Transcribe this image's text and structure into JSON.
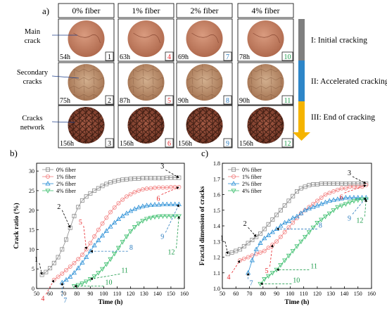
{
  "panel_a": {
    "label": "a)",
    "columns": [
      "0% fiber",
      "1% fiber",
      "2% fiber",
      "4% fiber"
    ],
    "row_labels": [
      [
        "Main",
        "crack"
      ],
      [
        "Secondary",
        "cracks"
      ],
      [
        "Cracks",
        "network"
      ]
    ],
    "cells": [
      [
        {
          "time": "54h",
          "num": "1",
          "color": "#000000"
        },
        {
          "time": "63h",
          "num": "4",
          "color": "#e8282d"
        },
        {
          "time": "69h",
          "num": "7",
          "color": "#2a7bbf"
        },
        {
          "time": "78h",
          "num": "10",
          "color": "#1a9a48"
        }
      ],
      [
        {
          "time": "75h",
          "num": "2",
          "color": "#000000"
        },
        {
          "time": "87h",
          "num": "5",
          "color": "#e8282d"
        },
        {
          "time": "90h",
          "num": "8",
          "color": "#2a7bbf"
        },
        {
          "time": "90h",
          "num": "11",
          "color": "#1a9a48"
        }
      ],
      [
        {
          "time": "156h",
          "num": "3",
          "color": "#000000"
        },
        {
          "time": "156h",
          "num": "6",
          "color": "#e8282d"
        },
        {
          "time": "156h",
          "num": "9",
          "color": "#2a7bbf"
        },
        {
          "time": "156h",
          "num": "12",
          "color": "#1a9a48"
        }
      ]
    ],
    "stages": [
      {
        "label": "I: Initial cracking",
        "color": "#7f7f7f"
      },
      {
        "label": "II: Accelerated cracking",
        "color": "#2e86c8"
      },
      {
        "label": "III: End of cracking",
        "color": "#f5b400"
      }
    ]
  },
  "chart_data": [
    {
      "type": "line",
      "panel_label": "b)",
      "xlabel": "Time (h)",
      "ylabel": "Crack ratio (%)",
      "xlim": [
        50,
        160
      ],
      "ylim": [
        0,
        32
      ],
      "xticks": [
        50,
        60,
        70,
        80,
        90,
        100,
        110,
        120,
        130,
        140,
        150,
        160
      ],
      "yticks": [
        0,
        5,
        10,
        15,
        20,
        25,
        30
      ],
      "legend_position": "top-left",
      "series": [
        {
          "name": "0% fiber",
          "color": "#8c8c8c",
          "marker": "square",
          "x": [
            54,
            57,
            60,
            63,
            66,
            69,
            72,
            75,
            78,
            81,
            84,
            87,
            90,
            93,
            96,
            99,
            102,
            105,
            108,
            111,
            114,
            117,
            120,
            123,
            126,
            129,
            132,
            135,
            138,
            141,
            144,
            147,
            150,
            153,
            156
          ],
          "y": [
            3.5,
            4.2,
            5.2,
            6.5,
            8.0,
            10.0,
            12.5,
            15.5,
            18.5,
            20.8,
            22.5,
            23.5,
            24.3,
            25.0,
            25.6,
            26.2,
            26.7,
            27.1,
            27.4,
            27.6,
            27.8,
            27.9,
            28.0,
            28.1,
            28.1,
            28.2,
            28.2,
            28.2,
            28.2,
            28.2,
            28.2,
            28.3,
            28.3,
            28.3,
            28.3
          ]
        },
        {
          "name": "1% fiber",
          "color": "#f27f7f",
          "marker": "circle",
          "x": [
            63,
            66,
            69,
            72,
            75,
            78,
            81,
            84,
            87,
            90,
            93,
            96,
            99,
            102,
            105,
            108,
            111,
            114,
            117,
            120,
            123,
            126,
            129,
            132,
            135,
            138,
            141,
            144,
            147,
            150,
            153,
            156
          ],
          "y": [
            2.2,
            3.0,
            3.8,
            4.7,
            5.6,
            6.5,
            7.5,
            8.6,
            10.0,
            11.6,
            13.3,
            15.0,
            16.6,
            18.1,
            19.5,
            20.7,
            21.8,
            22.7,
            23.5,
            24.1,
            24.6,
            25.0,
            25.3,
            25.5,
            25.6,
            25.7,
            25.8,
            25.8,
            25.8,
            25.9,
            25.9,
            25.9
          ]
        },
        {
          "name": "2% fiber",
          "color": "#2a8fd6",
          "marker": "triangle-up",
          "x": [
            69,
            72,
            75,
            78,
            81,
            84,
            87,
            90,
            93,
            96,
            99,
            102,
            105,
            108,
            111,
            114,
            117,
            120,
            123,
            126,
            129,
            132,
            135,
            138,
            141,
            144,
            147,
            150,
            153,
            156
          ],
          "y": [
            1.5,
            2.2,
            3.0,
            4.0,
            5.2,
            6.6,
            8.0,
            9.5,
            11.0,
            12.3,
            13.5,
            14.7,
            15.8,
            16.8,
            17.7,
            18.5,
            19.2,
            19.8,
            20.3,
            20.7,
            21.0,
            21.2,
            21.3,
            21.4,
            21.4,
            21.5,
            21.5,
            21.5,
            21.5,
            21.5
          ]
        },
        {
          "name": "4% fiber",
          "color": "#3dbf6e",
          "marker": "triangle-down",
          "x": [
            78,
            81,
            84,
            87,
            90,
            93,
            96,
            99,
            102,
            105,
            108,
            111,
            114,
            117,
            120,
            123,
            126,
            129,
            132,
            135,
            138,
            141,
            144,
            147,
            150,
            153,
            156
          ],
          "y": [
            0.6,
            0.9,
            1.3,
            1.8,
            2.4,
            3.1,
            4.0,
            5.0,
            6.2,
            7.5,
            8.9,
            10.4,
            11.9,
            13.3,
            14.6,
            15.7,
            16.6,
            17.3,
            17.8,
            18.1,
            18.3,
            18.4,
            18.5,
            18.5,
            18.5,
            18.5,
            18.5
          ]
        }
      ],
      "annotations": [
        {
          "text": "1",
          "color": "#000000",
          "point": [
            54,
            3.5
          ],
          "label": [
            52,
            6.5
          ]
        },
        {
          "text": "2",
          "color": "#000000",
          "point": [
            75,
            15.5
          ],
          "label": [
            69,
            20.0
          ]
        },
        {
          "text": "3",
          "color": "#000000",
          "point": [
            156,
            28.3
          ],
          "label": [
            146,
            30.3
          ]
        },
        {
          "text": "4",
          "color": "#e8282d",
          "point": [
            63,
            2.2
          ],
          "label": [
            57,
            -1.5
          ]
        },
        {
          "text": "5",
          "color": "#e8282d",
          "point": [
            87,
            10.0
          ],
          "label": [
            85,
            16.0
          ]
        },
        {
          "text": "6",
          "color": "#e8282d",
          "point": [
            156,
            25.9
          ],
          "label": [
            143,
            24.0
          ]
        },
        {
          "text": "7",
          "color": "#2a7bbf",
          "point": [
            69,
            1.5
          ],
          "label": [
            69,
            -2.0
          ]
        },
        {
          "text": "8",
          "color": "#2a7bbf",
          "point": [
            90,
            9.5
          ],
          "label": [
            118,
            9.5
          ]
        },
        {
          "text": "9",
          "color": "#2a7bbf",
          "point": [
            156,
            21.5
          ],
          "label": [
            146,
            14.3
          ]
        },
        {
          "text": "10",
          "color": "#1a9a48",
          "point": [
            78,
            0.6
          ],
          "label": [
            100,
            0.6
          ]
        },
        {
          "text": "11",
          "color": "#1a9a48",
          "point": [
            90,
            2.4
          ],
          "label": [
            112,
            3.7
          ]
        },
        {
          "text": "12",
          "color": "#1a9a48",
          "point": [
            156,
            18.5
          ],
          "label": [
            154,
            10.3
          ]
        }
      ]
    },
    {
      "type": "line",
      "panel_label": "c)",
      "xlabel": "Time (h)",
      "ylabel": "Fractal dimension of cracks",
      "xlim": [
        50,
        160
      ],
      "ylim": [
        1.0,
        1.8
      ],
      "xticks": [
        50,
        60,
        70,
        80,
        90,
        100,
        110,
        120,
        130,
        140,
        150,
        160
      ],
      "yticks": [
        1.0,
        1.1,
        1.2,
        1.3,
        1.4,
        1.5,
        1.6,
        1.7,
        1.8
      ],
      "legend_position": "top-left",
      "series": [
        {
          "name": "0% fiber",
          "color": "#8c8c8c",
          "marker": "square",
          "x": [
            54,
            57,
            60,
            63,
            66,
            69,
            72,
            75,
            78,
            81,
            84,
            87,
            90,
            93,
            96,
            99,
            102,
            105,
            108,
            111,
            114,
            117,
            120,
            123,
            126,
            129,
            132,
            135,
            138,
            141,
            144,
            147,
            150,
            153,
            156
          ],
          "y": [
            1.22,
            1.23,
            1.24,
            1.25,
            1.27,
            1.29,
            1.31,
            1.33,
            1.35,
            1.38,
            1.41,
            1.44,
            1.47,
            1.5,
            1.53,
            1.56,
            1.59,
            1.62,
            1.64,
            1.65,
            1.66,
            1.665,
            1.665,
            1.67,
            1.67,
            1.67,
            1.67,
            1.67,
            1.67,
            1.67,
            1.67,
            1.67,
            1.67,
            1.67,
            1.67
          ]
        },
        {
          "name": "1% fiber",
          "color": "#f27f7f",
          "marker": "circle",
          "x": [
            63,
            66,
            69,
            72,
            75,
            78,
            81,
            84,
            87,
            90,
            93,
            96,
            99,
            102,
            105,
            108,
            111,
            114,
            117,
            120,
            123,
            126,
            129,
            132,
            135,
            138,
            141,
            144,
            147,
            150,
            153,
            156
          ],
          "y": [
            1.18,
            1.19,
            1.2,
            1.21,
            1.22,
            1.23,
            1.24,
            1.26,
            1.28,
            1.3,
            1.33,
            1.36,
            1.39,
            1.42,
            1.45,
            1.48,
            1.5,
            1.52,
            1.54,
            1.56,
            1.58,
            1.6,
            1.61,
            1.62,
            1.63,
            1.64,
            1.64,
            1.65,
            1.65,
            1.65,
            1.65,
            1.66
          ]
        },
        {
          "name": "2% fiber",
          "color": "#2a8fd6",
          "marker": "triangle-up",
          "x": [
            69,
            72,
            75,
            78,
            81,
            84,
            87,
            90,
            93,
            96,
            99,
            102,
            105,
            108,
            111,
            114,
            117,
            120,
            123,
            126,
            129,
            132,
            135,
            138,
            141,
            144,
            147,
            150,
            153,
            156
          ],
          "y": [
            1.1,
            1.18,
            1.25,
            1.29,
            1.32,
            1.34,
            1.36,
            1.38,
            1.4,
            1.42,
            1.43,
            1.45,
            1.46,
            1.48,
            1.5,
            1.51,
            1.52,
            1.53,
            1.54,
            1.55,
            1.56,
            1.565,
            1.57,
            1.575,
            1.58,
            1.58,
            1.58,
            1.58,
            1.58,
            1.58
          ]
        },
        {
          "name": "4% fiber",
          "color": "#3dbf6e",
          "marker": "triangle-down",
          "x": [
            78,
            81,
            84,
            87,
            90,
            93,
            96,
            99,
            102,
            105,
            108,
            111,
            114,
            117,
            120,
            123,
            126,
            129,
            132,
            135,
            138,
            141,
            144,
            147,
            150,
            153,
            156
          ],
          "y": [
            1.03,
            1.06,
            1.08,
            1.1,
            1.12,
            1.15,
            1.18,
            1.21,
            1.24,
            1.27,
            1.3,
            1.33,
            1.36,
            1.39,
            1.42,
            1.44,
            1.46,
            1.48,
            1.5,
            1.52,
            1.53,
            1.54,
            1.55,
            1.56,
            1.565,
            1.57,
            1.57
          ]
        }
      ],
      "annotations": [
        {
          "text": "1",
          "color": "#000000",
          "point": [
            54,
            1.22
          ],
          "label": [
            52,
            1.3
          ]
        },
        {
          "text": "2",
          "color": "#000000",
          "point": [
            75,
            1.33
          ],
          "label": [
            69,
            1.39
          ]
        },
        {
          "text": "3",
          "color": "#000000",
          "point": [
            156,
            1.67
          ],
          "label": [
            146,
            1.715
          ]
        },
        {
          "text": "4",
          "color": "#e8282d",
          "point": [
            63,
            1.18
          ],
          "label": [
            57,
            1.1
          ]
        },
        {
          "text": "5",
          "color": "#e8282d",
          "point": [
            87,
            1.28
          ],
          "label": [
            85,
            1.14
          ]
        },
        {
          "text": "6",
          "color": "#e8282d",
          "point": [
            156,
            1.66
          ],
          "label": [
            140,
            1.61
          ]
        },
        {
          "text": "7",
          "color": "#2a7bbf",
          "point": [
            69,
            1.1
          ],
          "label": [
            69,
            1.06
          ]
        },
        {
          "text": "8",
          "color": "#2a7bbf",
          "point": [
            90,
            1.38
          ],
          "label": [
            120,
            1.38
          ]
        },
        {
          "text": "9",
          "color": "#2a7bbf",
          "point": [
            156,
            1.58
          ],
          "label": [
            146,
            1.475
          ]
        },
        {
          "text": "10",
          "color": "#1a9a48",
          "point": [
            78,
            1.03
          ],
          "label": [
            101,
            1.03
          ]
        },
        {
          "text": "11",
          "color": "#1a9a48",
          "point": [
            90,
            1.12
          ],
          "label": [
            114,
            1.12
          ]
        },
        {
          "text": "12",
          "color": "#1a9a48",
          "point": [
            156,
            1.57
          ],
          "label": [
            155,
            1.46
          ]
        }
      ]
    }
  ]
}
